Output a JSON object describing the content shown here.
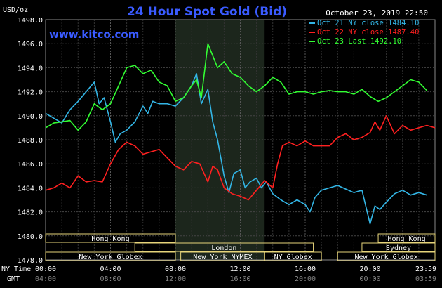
{
  "header": {
    "title": "24 Hour Spot Gold (Bid)",
    "unit": "USD/oz",
    "datetime": "October 23, 2019 22:50",
    "brand": "www.kitco.com"
  },
  "legend": [
    {
      "label": "Oct 21 NY close 1484.10",
      "color": "#33b5e5"
    },
    {
      "label": "Oct 22 NY close 1487.40",
      "color": "#ff2020"
    },
    {
      "label": "Oct 23 Last 1492.10",
      "color": "#33ff33"
    }
  ],
  "axis_labels": {
    "ny_time": "NY Time",
    "gmt": "GMT"
  },
  "sessions": [
    {
      "label": "Hong Kong",
      "start": 0,
      "end": 8
    },
    {
      "label": "London",
      "start": 5.5,
      "end": 16.5
    },
    {
      "label": "New York Globex",
      "start": 0,
      "end": 8
    },
    {
      "label": "New York NYMEX",
      "start": 8.33,
      "end": 13.5
    },
    {
      "label": "NY Globex",
      "start": 13.5,
      "end": 17
    },
    {
      "label": "Hong Kong",
      "start": 20.5,
      "end": 24
    },
    {
      "label": "Sydney",
      "start": 19.5,
      "end": 24
    },
    {
      "label": "New York Globex",
      "start": 18,
      "end": 24
    }
  ],
  "chart_data": {
    "type": "line",
    "ylim": [
      1478,
      1498
    ],
    "xlim": [
      0,
      24
    ],
    "yticks": [
      "1478.0",
      "1480.0",
      "1482.0",
      "1484.0",
      "1486.0",
      "1488.0",
      "1490.0",
      "1492.0",
      "1494.0",
      "1496.0",
      "1498.0"
    ],
    "xticks_ny": [
      "00:00",
      "04:00",
      "08:00",
      "12:00",
      "16:00",
      "20:00",
      "23:59"
    ],
    "xticks_gmt": [
      "04:00",
      "08:00",
      "12:00",
      "16:00",
      "20:00",
      "00:00",
      "03:59"
    ],
    "highlight_range": [
      8,
      13.5
    ],
    "grid": true,
    "legend_position": "top-right",
    "series": [
      {
        "name": "Oct 21 NY close 1484.10",
        "color": "#33b5e5",
        "x": [
          0,
          0.5,
          1,
          1.5,
          2,
          2.5,
          3,
          3.3,
          3.6,
          4,
          4.3,
          4.6,
          5,
          5.5,
          6,
          6.3,
          6.6,
          7,
          7.5,
          8,
          8.5,
          9,
          9.3,
          9.6,
          10,
          10.3,
          10.6,
          11,
          11.3,
          11.6,
          12,
          12.3,
          12.6,
          13,
          13.3,
          13.6,
          14,
          14.5,
          15,
          15.5,
          16,
          16.3,
          16.6,
          17,
          17.5,
          18,
          18.5,
          19,
          19.5,
          20,
          20.3,
          20.6,
          21,
          21.5,
          22,
          22.5,
          23,
          23.5
        ],
        "y": [
          1490.2,
          1489.8,
          1489.4,
          1490.5,
          1491.2,
          1492.0,
          1492.8,
          1491.0,
          1491.5,
          1489.5,
          1487.8,
          1488.5,
          1488.8,
          1489.5,
          1490.8,
          1490.2,
          1491.2,
          1491.0,
          1491.0,
          1490.8,
          1491.5,
          1492.5,
          1493.5,
          1491.0,
          1492.2,
          1489.5,
          1488.0,
          1485.0,
          1483.6,
          1485.2,
          1485.5,
          1484.0,
          1484.5,
          1484.8,
          1484.0,
          1484.5,
          1483.5,
          1483.0,
          1482.6,
          1483.0,
          1482.6,
          1482.0,
          1483.2,
          1483.8,
          1484.0,
          1484.2,
          1483.9,
          1483.6,
          1483.8,
          1481.0,
          1482.5,
          1482.2,
          1482.8,
          1483.5,
          1483.8,
          1483.4,
          1483.6,
          1483.4
        ]
      },
      {
        "name": "Oct 22 NY close 1487.40",
        "color": "#ff2020",
        "x": [
          0,
          0.5,
          1,
          1.5,
          2,
          2.5,
          3,
          3.5,
          4,
          4.5,
          5,
          5.5,
          6,
          6.5,
          7,
          7.5,
          8,
          8.5,
          9,
          9.5,
          10,
          10.3,
          10.6,
          11,
          11.5,
          12,
          12.5,
          13,
          13.5,
          14,
          14.3,
          14.6,
          15,
          15.5,
          16,
          16.5,
          17,
          17.5,
          18,
          18.5,
          19,
          19.5,
          20,
          20.3,
          20.6,
          21,
          21.5,
          22,
          22.5,
          23,
          23.5,
          24
        ],
        "y": [
          1483.8,
          1484.0,
          1484.4,
          1484.0,
          1485.0,
          1484.5,
          1484.6,
          1484.5,
          1486.0,
          1487.2,
          1487.8,
          1487.5,
          1486.8,
          1487.0,
          1487.2,
          1486.5,
          1485.8,
          1485.5,
          1486.2,
          1486.0,
          1484.5,
          1485.8,
          1485.5,
          1484.0,
          1483.5,
          1483.3,
          1483.0,
          1483.8,
          1484.6,
          1484.0,
          1486.0,
          1487.5,
          1487.8,
          1487.5,
          1487.9,
          1487.5,
          1487.5,
          1487.5,
          1488.2,
          1488.5,
          1488.0,
          1488.2,
          1488.6,
          1489.5,
          1488.8,
          1490.0,
          1488.5,
          1489.2,
          1488.8,
          1489.0,
          1489.2,
          1489.0
        ]
      },
      {
        "name": "Oct 23 Last 1492.10",
        "color": "#33ff33",
        "x": [
          0,
          0.5,
          1,
          1.5,
          2,
          2.5,
          3,
          3.5,
          4,
          4.5,
          5,
          5.5,
          6,
          6.5,
          7,
          7.5,
          8,
          8.5,
          9,
          9.3,
          9.6,
          10,
          10.3,
          10.6,
          11,
          11.5,
          12,
          12.5,
          13,
          13.5,
          14,
          14.5,
          15,
          15.5,
          16,
          16.5,
          17,
          17.5,
          18,
          18.5,
          19,
          19.5,
          20,
          20.5,
          21,
          21.5,
          22,
          22.5,
          23,
          23.5
        ],
        "y": [
          1489.0,
          1489.4,
          1489.5,
          1489.6,
          1488.8,
          1489.5,
          1491.0,
          1490.5,
          1491.0,
          1492.5,
          1494.0,
          1494.2,
          1493.5,
          1493.8,
          1492.8,
          1492.5,
          1491.2,
          1491.5,
          1492.5,
          1493.0,
          1491.5,
          1496.0,
          1495.0,
          1494.0,
          1494.5,
          1493.5,
          1493.2,
          1492.5,
          1492.0,
          1492.5,
          1493.2,
          1492.8,
          1491.8,
          1492.0,
          1492.0,
          1491.8,
          1492.0,
          1492.1,
          1492.0,
          1492.0,
          1491.8,
          1492.2,
          1491.6,
          1491.2,
          1491.5,
          1492.0,
          1492.5,
          1493.0,
          1492.8,
          1492.1
        ]
      }
    ]
  }
}
